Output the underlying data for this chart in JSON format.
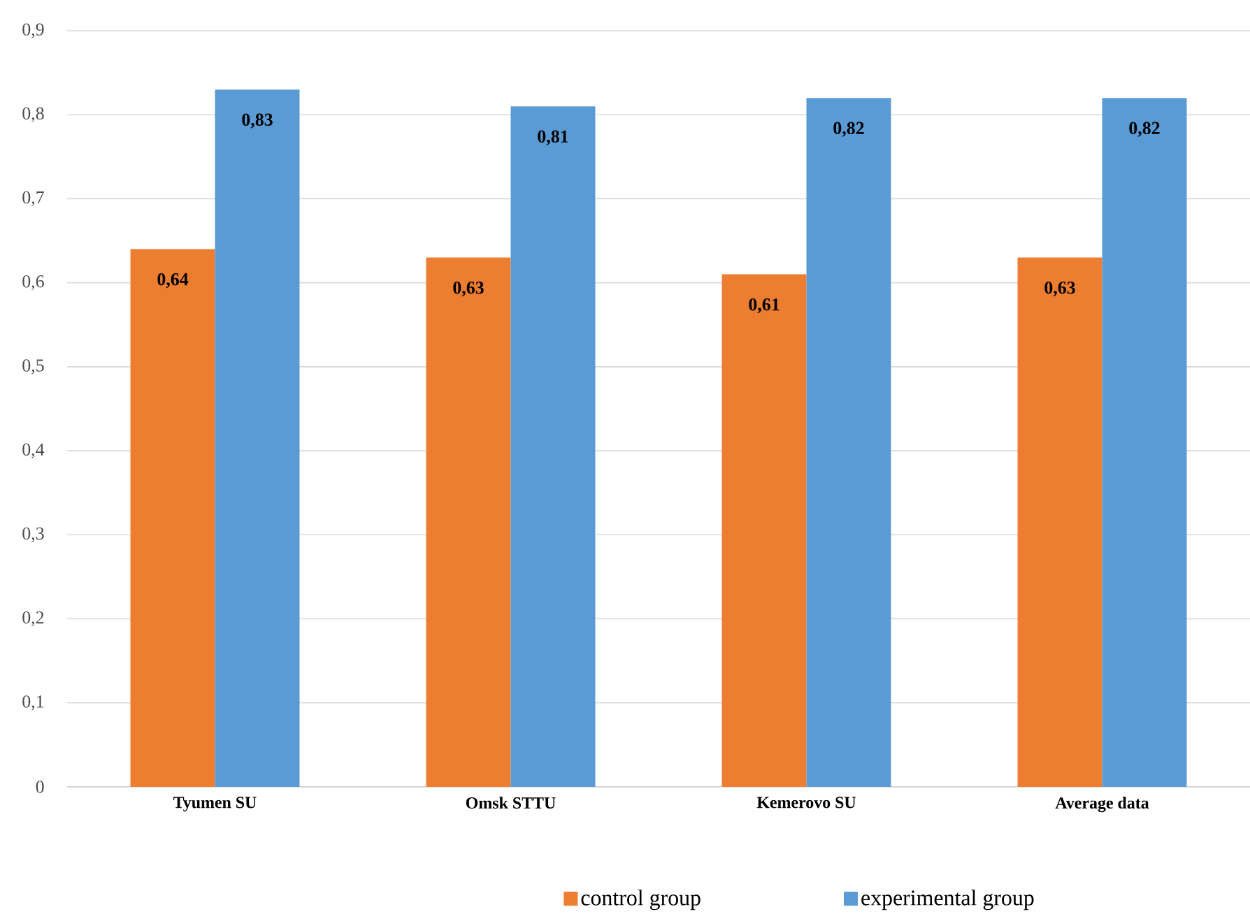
{
  "chart_data": {
    "type": "bar",
    "categories": [
      "Tyumen SU",
      "Omsk STTU",
      "Kemerovo SU",
      "Average data"
    ],
    "series": [
      {
        "name": "control group",
        "color": "#ed7d31",
        "values": [
          0.64,
          0.63,
          0.61,
          0.63
        ],
        "value_labels": [
          "0,64",
          "0,63",
          "0,61",
          "0,63"
        ]
      },
      {
        "name": "experimental group",
        "color": "#5b9bd5",
        "values": [
          0.83,
          0.81,
          0.82,
          0.82
        ],
        "value_labels": [
          "0,83",
          "0,81",
          "0,82",
          "0,82"
        ]
      }
    ],
    "ylim": [
      0,
      0.9
    ],
    "yticks": [
      {
        "value": 0,
        "label": "0"
      },
      {
        "value": 0.1,
        "label": "0,1"
      },
      {
        "value": 0.2,
        "label": "0,2"
      },
      {
        "value": 0.3,
        "label": "0,3"
      },
      {
        "value": 0.4,
        "label": "0,4"
      },
      {
        "value": 0.5,
        "label": "0,5"
      },
      {
        "value": 0.6,
        "label": "0,6"
      },
      {
        "value": 0.7,
        "label": "0,7"
      },
      {
        "value": 0.8,
        "label": "0,8"
      },
      {
        "value": 0.9,
        "label": "0,9"
      }
    ],
    "grid": "y",
    "legend": "bottom"
  }
}
